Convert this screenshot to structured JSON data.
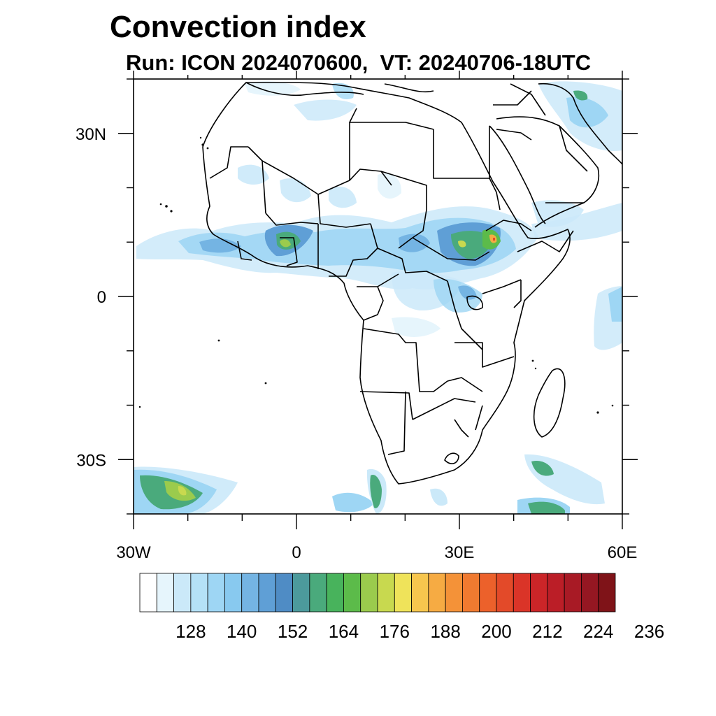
{
  "title": "Convection index",
  "subtitle": "Run: ICON 2024070600,  VT: 20240706-18UTC",
  "map": {
    "lon_range": [
      -30,
      60
    ],
    "lat_range": [
      -40,
      40
    ],
    "lon_ticks": [
      {
        "value": -30,
        "label": "30W"
      },
      {
        "value": 0,
        "label": "0"
      },
      {
        "value": 30,
        "label": "30E"
      },
      {
        "value": 60,
        "label": "60E"
      }
    ],
    "lat_ticks": [
      {
        "value": 30,
        "label": "30N"
      },
      {
        "value": 0,
        "label": "0"
      },
      {
        "value": -30,
        "label": "30S"
      }
    ]
  },
  "colorbar": {
    "colors": [
      "#ffffff",
      "#e6f5fc",
      "#cbe9f9",
      "#b5e1f7",
      "#9ed6f4",
      "#88c9ef",
      "#74b4e3",
      "#5f9fd6",
      "#4f8cc5",
      "#4c9a9c",
      "#4aaa7c",
      "#48b35c",
      "#5cbb4a",
      "#9bcb4d",
      "#c8d94f",
      "#efe35a",
      "#f7c64e",
      "#f6ab43",
      "#f49238",
      "#f07a30",
      "#ec612b",
      "#e34a29",
      "#da3428",
      "#cb2528",
      "#bb1e27",
      "#a81a25",
      "#951722",
      "#7f1318"
    ],
    "tick_labels": [
      "128",
      "140",
      "152",
      "164",
      "176",
      "188",
      "200",
      "212",
      "224",
      "236"
    ]
  }
}
